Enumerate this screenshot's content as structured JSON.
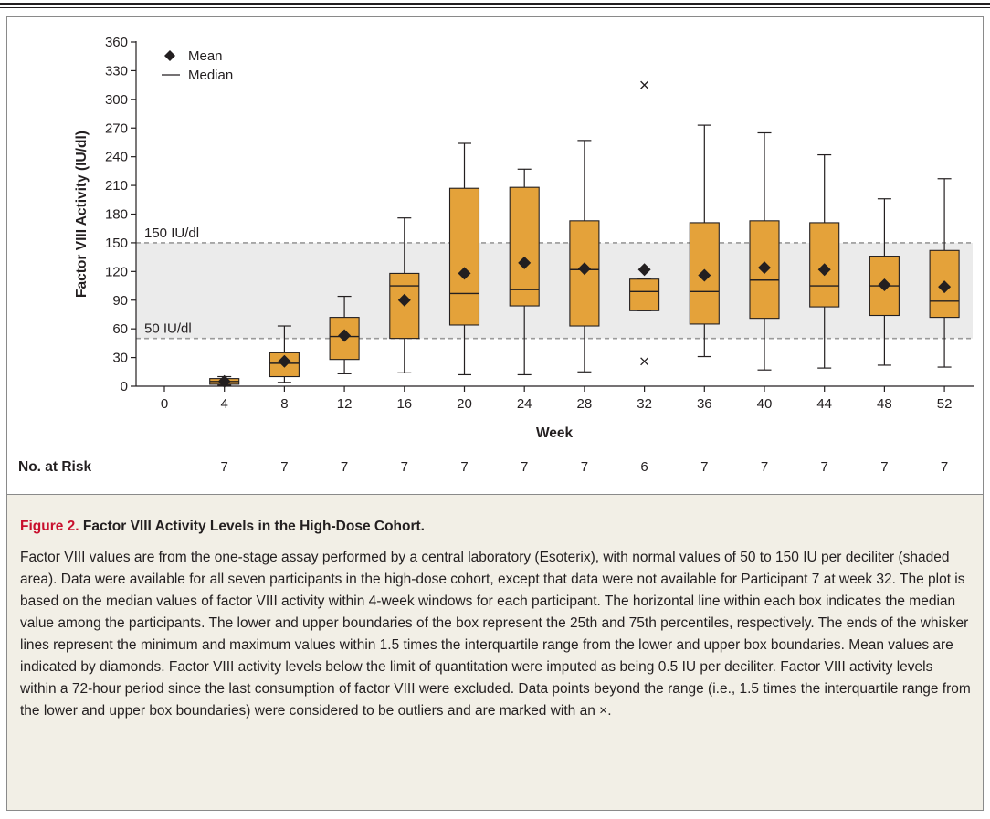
{
  "chart_data": {
    "type": "box",
    "xlabel": "Week",
    "ylabel": "Factor VIII Activity (IU/dl)",
    "ylim": [
      0,
      360
    ],
    "yticks": [
      0,
      30,
      60,
      90,
      120,
      150,
      180,
      210,
      240,
      270,
      300,
      330,
      360
    ],
    "categories": [
      0,
      4,
      8,
      12,
      16,
      20,
      24,
      28,
      32,
      36,
      40,
      44,
      48,
      52
    ],
    "legend": {
      "mean": "Mean",
      "median": "Median",
      "position": "top-left"
    },
    "reference_band": {
      "low": 50,
      "high": 150,
      "low_label": "50 IU/dl",
      "high_label": "150 IU/dl"
    },
    "boxes": [
      {
        "week": 4,
        "min": 1,
        "q1": 2,
        "median": 5,
        "q3": 8,
        "max": 10,
        "mean": 5,
        "outliers": []
      },
      {
        "week": 8,
        "min": 4,
        "q1": 10,
        "median": 24,
        "q3": 35,
        "max": 63,
        "mean": 26,
        "outliers": []
      },
      {
        "week": 12,
        "min": 13,
        "q1": 28,
        "median": 52,
        "q3": 72,
        "max": 94,
        "mean": 53,
        "outliers": []
      },
      {
        "week": 16,
        "min": 14,
        "q1": 50,
        "median": 105,
        "q3": 118,
        "max": 176,
        "mean": 90,
        "outliers": []
      },
      {
        "week": 20,
        "min": 12,
        "q1": 64,
        "median": 97,
        "q3": 207,
        "max": 254,
        "mean": 118,
        "outliers": []
      },
      {
        "week": 24,
        "min": 12,
        "q1": 84,
        "median": 101,
        "q3": 208,
        "max": 227,
        "mean": 129,
        "outliers": []
      },
      {
        "week": 28,
        "min": 15,
        "q1": 63,
        "median": 122,
        "q3": 173,
        "max": 257,
        "mean": 123,
        "outliers": []
      },
      {
        "week": 32,
        "min": 79,
        "q1": 79,
        "median": 99,
        "q3": 112,
        "max": 112,
        "mean": 122,
        "outliers": [
          315,
          26
        ]
      },
      {
        "week": 36,
        "min": 31,
        "q1": 65,
        "median": 99,
        "q3": 171,
        "max": 273,
        "mean": 116,
        "outliers": []
      },
      {
        "week": 40,
        "min": 17,
        "q1": 71,
        "median": 111,
        "q3": 173,
        "max": 265,
        "mean": 124,
        "outliers": []
      },
      {
        "week": 44,
        "min": 19,
        "q1": 83,
        "median": 105,
        "q3": 171,
        "max": 242,
        "mean": 122,
        "outliers": []
      },
      {
        "week": 48,
        "min": 22,
        "q1": 74,
        "median": 105,
        "q3": 136,
        "max": 196,
        "mean": 106,
        "outliers": []
      },
      {
        "week": 52,
        "min": 20,
        "q1": 72,
        "median": 89,
        "q3": 142,
        "max": 217,
        "mean": 104,
        "outliers": []
      }
    ],
    "at_risk": {
      "label": "No. at Risk",
      "values": [
        {
          "week": 4,
          "n": "7"
        },
        {
          "week": 8,
          "n": "7"
        },
        {
          "week": 12,
          "n": "7"
        },
        {
          "week": 16,
          "n": "7"
        },
        {
          "week": 20,
          "n": "7"
        },
        {
          "week": 24,
          "n": "7"
        },
        {
          "week": 28,
          "n": "7"
        },
        {
          "week": 32,
          "n": "6"
        },
        {
          "week": 36,
          "n": "7"
        },
        {
          "week": 40,
          "n": "7"
        },
        {
          "week": 44,
          "n": "7"
        },
        {
          "week": 48,
          "n": "7"
        },
        {
          "week": 52,
          "n": "7"
        }
      ]
    },
    "colors": {
      "box_fill": "#e4a23a",
      "box_stroke": "#231f20",
      "band_fill": "#ebebeb",
      "band_line": "#9a9a9a",
      "text": "#231f20"
    }
  },
  "caption": {
    "label": "Figure 2.",
    "title": "Factor VIII Activity Levels in the High-Dose Cohort.",
    "body": "Factor VIII values are from the one-stage assay performed by a central laboratory (Esoterix), with normal values of 50 to 150 IU per deciliter (shaded area). Data were available for all seven participants in the high-dose cohort, except that data were not available for Participant 7 at week 32. The plot is based on the median values of factor VIII activity within 4-week windows for each participant. The horizontal line within each box indicates the median value among the participants. The lower and upper boundaries of the box represent the 25th and 75th percentiles, respectively. The ends of the whisker lines represent the minimum and maximum values within 1.5 times the interquartile range from the lower and upper box boundaries. Mean values are indicated by diamonds. Factor VIII activity levels below the limit of quantitation were imputed as being 0.5 IU per deciliter. Factor VIII activity levels within a 72-hour period since the last consumption of factor VIII were excluded. Data points beyond the range (i.e., 1.5 times the interquartile range from the lower and upper box boundaries) were considered to be outliers and are marked with an ×.",
    "bg_color": "#f2efe6",
    "label_color": "#c8102e"
  }
}
